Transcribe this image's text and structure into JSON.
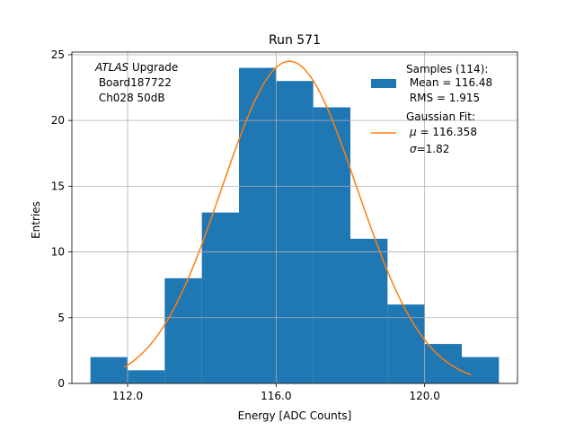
{
  "chart_data": {
    "type": "bar",
    "title": "Run 571",
    "xlabel": "Energy [ADC Counts]",
    "ylabel": "Entries",
    "xlim": [
      110.5,
      122.5
    ],
    "ylim": [
      0,
      25.2
    ],
    "xticks": [
      112.0,
      116.0,
      120.0
    ],
    "xtick_labels": [
      "112.0",
      "116.0",
      "120.0"
    ],
    "yticks": [
      0,
      5,
      10,
      15,
      20,
      25
    ],
    "ytick_labels": [
      "0",
      "5",
      "10",
      "15",
      "20",
      "25"
    ],
    "grid": true,
    "bins": [
      {
        "x0": 111,
        "x1": 112,
        "count": 2
      },
      {
        "x0": 112,
        "x1": 113,
        "count": 1
      },
      {
        "x0": 113,
        "x1": 114,
        "count": 8
      },
      {
        "x0": 114,
        "x1": 115,
        "count": 13
      },
      {
        "x0": 115,
        "x1": 116,
        "count": 24
      },
      {
        "x0": 116,
        "x1": 117,
        "count": 23
      },
      {
        "x0": 117,
        "x1": 118,
        "count": 21
      },
      {
        "x0": 118,
        "x1": 119,
        "count": 11
      },
      {
        "x0": 119,
        "x1": 120,
        "count": 6
      },
      {
        "x0": 120,
        "x1": 121,
        "count": 3
      },
      {
        "x0": 121,
        "x1": 122,
        "count": 2
      }
    ],
    "fit": {
      "type": "gaussian",
      "amplitude": 24.5,
      "mu": 116.358,
      "sigma": 1.82,
      "x_range": [
        111.9,
        121.25
      ]
    },
    "annotation": {
      "line1_italic": "ATLAS",
      "line1_rest": " Upgrade",
      "line2": " Board187722",
      "line3": " Ch028 50dB"
    },
    "legend": {
      "placement": "top-right",
      "samples_title": "Samples (114):",
      "samples_mean": " Mean = 116.48",
      "samples_rms": " RMS = 1.915",
      "fit_title": "Gaussian Fit:",
      "fit_mu_symbol": "μ",
      "fit_mu_value": " = 116.358",
      "fit_sigma_symbol": "σ",
      "fit_sigma_value": "=1.82"
    },
    "colors": {
      "bars": "#1f77b4",
      "fit_line": "#ff7f0e",
      "grid": "#b0b0b0"
    }
  }
}
